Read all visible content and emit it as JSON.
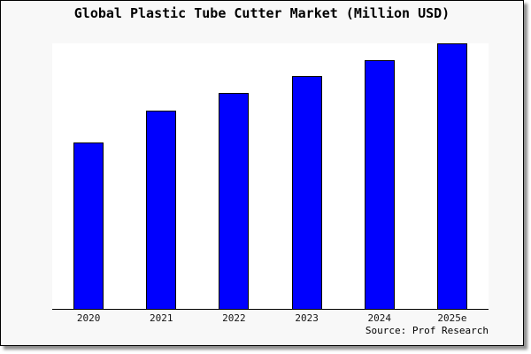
{
  "chart_data": {
    "type": "bar",
    "title": "Global Plastic Tube Cutter Market (Million USD)",
    "categories": [
      "2020",
      "2021",
      "2022",
      "2023",
      "2024",
      "2025e"
    ],
    "values": [
      62.7,
      74.8,
      81.3,
      87.6,
      93.7,
      100
    ],
    "values_note": "y-axis has no ticks, labels or gridlines; values are relative bar heights normalized to the tallest bar (2025e = 100)",
    "xlabel": "",
    "ylabel": "",
    "ylim": [
      0,
      100
    ],
    "grid": false,
    "legend": false,
    "bar_fill_color": "#0000fe",
    "bar_border_color": "#000000"
  },
  "source_text": "Source: Prof Research",
  "colors": {
    "canvas_background": "#f8f8f8",
    "plot_background": "#ffffff",
    "frame_border": "#000000",
    "axis_line": "#000000",
    "shadow": "#8f8f8f",
    "text": "#000000"
  }
}
